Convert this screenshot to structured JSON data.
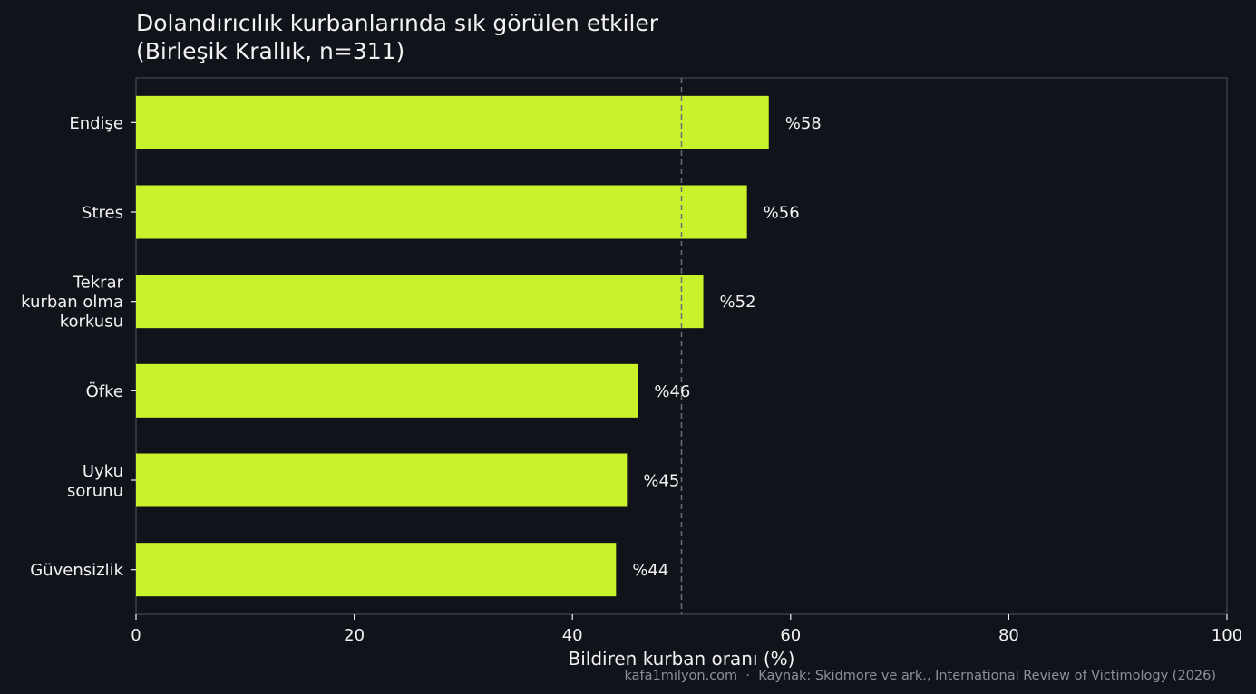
{
  "chart_data": {
    "type": "bar",
    "orientation": "horizontal",
    "title_lines": [
      "Dolandırıcılık kurbanlarında sık görülen etkiler",
      "(Birleşik Krallık, n=311)"
    ],
    "xlabel": "Bildiren kurban oranı (%)",
    "ylabel": "",
    "xlim": [
      0,
      100
    ],
    "xticks": [
      0,
      20,
      40,
      60,
      80,
      100
    ],
    "reference_line": 50,
    "categories": [
      [
        "Endişe"
      ],
      [
        "Stres"
      ],
      [
        "Tekrar",
        "kurban olma",
        "korkusu"
      ],
      [
        "Öfke"
      ],
      [
        "Uyku",
        "sorunu"
      ],
      [
        "Güvensizlik"
      ]
    ],
    "values": [
      58,
      56,
      52,
      46,
      45,
      44
    ],
    "value_labels": [
      "%58",
      "%56",
      "%52",
      "%46",
      "%45",
      "%44"
    ],
    "grid": false,
    "colors": {
      "background": "#11131a",
      "bar": "#c8f22a",
      "text": "#f2f2f2",
      "frame": "#3a3d47",
      "reference_line": "#6b6e78",
      "footer": "#8d9099"
    }
  },
  "footer": {
    "text": "kafa1milyon.com  ·  Kaynak: Skidmore ve ark., International Review of Victimology (2026)"
  }
}
